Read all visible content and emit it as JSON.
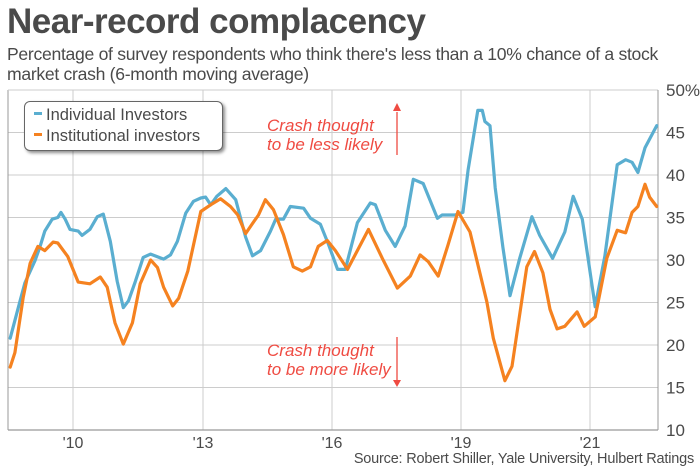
{
  "header": {
    "title": "Near-record complacency",
    "subtitle": "Percentage of survey respondents who think there's less than a 10% chance of a stock market crash (6-month moving average)"
  },
  "source": "Source: Robert Shiller, Yale University, Hulbert Ratings",
  "colors": {
    "individual": "#5aaed0",
    "institutional": "#f58220",
    "annotation": "#ef4b42",
    "grid": "#cccccc",
    "text": "#4a4a4a"
  },
  "annotations": {
    "up": {
      "line1": "Crash thought",
      "line2": "to be less likely"
    },
    "down": {
      "line1": "Crash thought",
      "line2": "to be more likely"
    }
  },
  "chart_data": {
    "type": "line",
    "title": "Near-record complacency",
    "subtitle": "Percentage of survey respondents who think there's less than a 10% chance of a stock market crash (6-month moving average)",
    "xlabel": "",
    "ylabel": "",
    "y_axis_side": "right",
    "ylim": [
      10,
      50
    ],
    "y_ticks": [
      10,
      15,
      20,
      25,
      30,
      35,
      40,
      45,
      50
    ],
    "y_tick_labels": [
      "10",
      "15",
      "20",
      "25",
      "30",
      "35",
      "40",
      "45",
      "50%"
    ],
    "x_ticks": [
      2010,
      2013,
      2016,
      2019,
      2021
    ],
    "x_tick_labels": [
      "'10",
      "'13",
      "'16",
      "'19",
      "'21"
    ],
    "xlim": [
      2008.5,
      2022.05
    ],
    "grid": true,
    "legend_position": "top-left",
    "series": [
      {
        "name": "Individual Investors",
        "color": "#5aaed0",
        "x": [
          2008.55,
          2008.78,
          2008.89,
          2009.12,
          2009.24,
          2009.35,
          2009.52,
          2009.65,
          2009.72,
          2009.82,
          2009.93,
          2010.12,
          2010.21,
          2010.39,
          2010.56,
          2010.7,
          2010.86,
          2011.02,
          2011.16,
          2011.28,
          2011.44,
          2011.62,
          2011.79,
          2012.09,
          2012.25,
          2012.41,
          2012.6,
          2012.78,
          2012.95,
          2013.06,
          2013.18,
          2013.32,
          2013.53,
          2013.76,
          2013.99,
          2014.15,
          2014.34,
          2014.57,
          2014.69,
          2014.87,
          2015.03,
          2015.34,
          2015.5,
          2015.73,
          2015.92,
          2016.13,
          2016.31,
          2016.59,
          2016.89,
          2017.01,
          2017.24,
          2017.47,
          2017.7,
          2017.89,
          2018.12,
          2018.45,
          2018.56,
          2018.86,
          2019.03,
          2019.11,
          2019.26,
          2019.33,
          2019.37,
          2019.45,
          2019.53,
          2019.65,
          2019.76,
          2019.91,
          2020.1,
          2020.22,
          2020.42,
          2020.61,
          2020.74,
          2020.88,
          2021.08,
          2021.23,
          2021.42,
          2021.55,
          2021.65,
          2021.74,
          2021.85,
          2022.03
        ],
        "values": [
          20.8,
          25.2,
          27.3,
          29.9,
          31.6,
          33.4,
          34.8,
          35.0,
          35.6,
          34.8,
          33.6,
          33.4,
          32.9,
          33.6,
          35.1,
          35.4,
          32.2,
          27.5,
          24.4,
          25.2,
          27.5,
          30.3,
          30.7,
          30.1,
          30.6,
          32.2,
          35.5,
          36.9,
          37.3,
          37.4,
          36.5,
          37.5,
          38.4,
          37.1,
          32.7,
          30.5,
          31.1,
          33.4,
          34.8,
          34.8,
          36.3,
          36.1,
          34.9,
          34.2,
          31.8,
          28.9,
          28.9,
          34.4,
          36.7,
          36.5,
          33.5,
          31.6,
          34.0,
          39.5,
          39.0,
          34.9,
          35.3,
          35.3,
          35.6,
          40.6,
          47.6,
          47.6,
          46.3,
          45.8,
          38.5,
          31.5,
          25.8,
          30.2,
          35.1,
          32.9,
          30.2,
          33.3,
          37.5,
          34.8,
          24.5,
          30.5,
          41.2,
          41.8,
          41.5,
          40.3,
          43.2,
          45.8
        ]
      },
      {
        "name": "Institutional investors",
        "color": "#f58220",
        "x": [
          2008.55,
          2008.66,
          2008.85,
          2009.01,
          2009.19,
          2009.35,
          2009.54,
          2009.65,
          2009.88,
          2010.12,
          2010.39,
          2010.63,
          2010.79,
          2010.97,
          2011.16,
          2011.37,
          2011.55,
          2011.79,
          2011.95,
          2012.09,
          2012.3,
          2012.44,
          2012.65,
          2012.95,
          2013.18,
          2013.41,
          2013.64,
          2013.81,
          2013.99,
          2014.15,
          2014.29,
          2014.45,
          2014.64,
          2014.87,
          2015.1,
          2015.31,
          2015.5,
          2015.68,
          2015.89,
          2016.08,
          2016.36,
          2016.85,
          2017.17,
          2017.52,
          2017.82,
          2018.05,
          2018.24,
          2018.47,
          2018.7,
          2018.93,
          2019.14,
          2019.4,
          2019.5,
          2019.68,
          2019.79,
          2020.02,
          2020.14,
          2020.27,
          2020.38,
          2020.49,
          2020.61,
          2020.8,
          2020.91,
          2021.08,
          2021.26,
          2021.42,
          2021.55,
          2021.65,
          2021.74,
          2021.85,
          2021.92,
          2022.03
        ],
        "values": [
          17.4,
          19.1,
          25.6,
          29.6,
          31.6,
          31.1,
          32.1,
          32.0,
          30.4,
          27.4,
          27.2,
          28.0,
          26.8,
          22.6,
          20.1,
          22.6,
          27.2,
          30.0,
          29.1,
          26.8,
          24.6,
          25.5,
          28.7,
          35.7,
          36.5,
          37.2,
          36.3,
          35.3,
          33.1,
          34.3,
          35.3,
          37.1,
          35.9,
          33.0,
          29.2,
          28.7,
          29.2,
          31.6,
          32.3,
          31.1,
          28.9,
          33.6,
          30.2,
          26.7,
          28.1,
          30.6,
          29.8,
          28.1,
          31.8,
          35.7,
          33.3,
          25.1,
          20.8,
          15.8,
          17.5,
          29.2,
          31.0,
          28.5,
          24.2,
          21.9,
          22.2,
          23.9,
          22.2,
          23.3,
          30.2,
          33.5,
          33.2,
          35.6,
          36.3,
          38.9,
          37.4,
          36.3
        ]
      }
    ],
    "annotations": [
      {
        "text": "Crash thought to be less likely",
        "direction": "up"
      },
      {
        "text": "Crash thought to be more likely",
        "direction": "down"
      }
    ]
  }
}
